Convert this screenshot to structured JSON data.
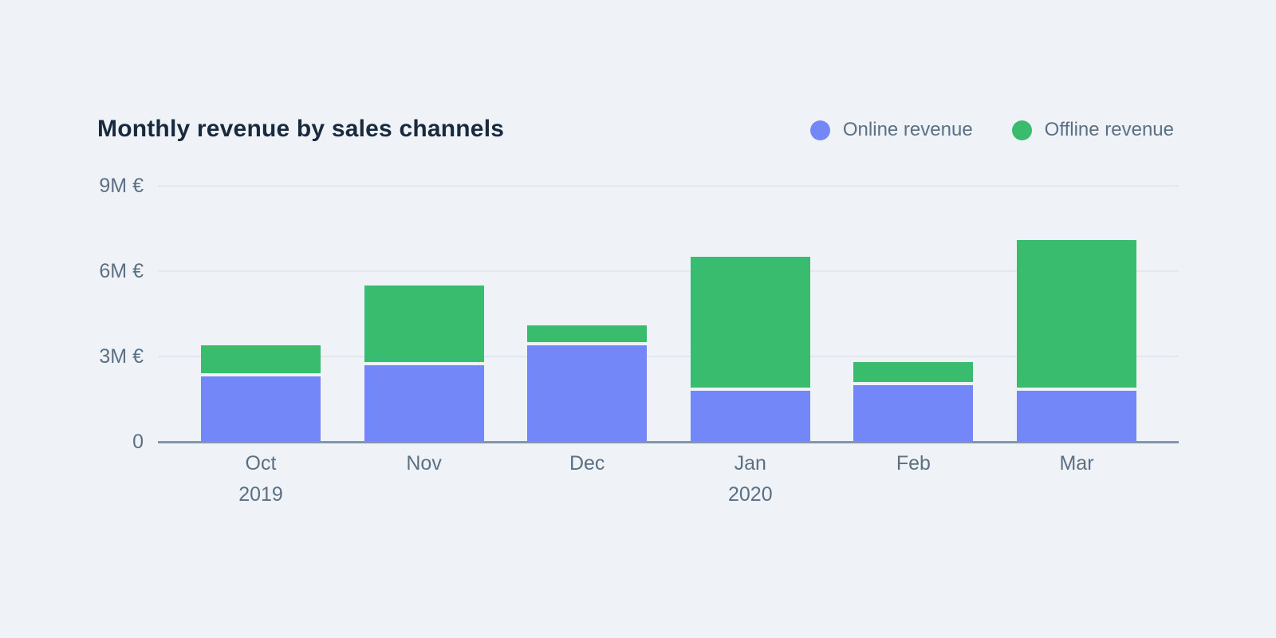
{
  "chart_data": {
    "type": "bar",
    "stacked": true,
    "title": "Monthly revenue by sales channels",
    "categories": [
      "Oct",
      "Nov",
      "Dec",
      "Jan",
      "Feb",
      "Mar"
    ],
    "year_labels": [
      {
        "category_index": 0,
        "label": "2019"
      },
      {
        "category_index": 3,
        "label": "2020"
      }
    ],
    "series": [
      {
        "key": "online",
        "name": "Online revenue",
        "color": "#7487F8",
        "values": [
          2.3,
          2.7,
          3.4,
          1.8,
          2.0,
          1.8
        ]
      },
      {
        "key": "offline",
        "name": "Offline revenue",
        "color": "#39BC6E",
        "values": [
          1.1,
          2.8,
          0.7,
          4.7,
          0.8,
          5.3
        ]
      }
    ],
    "totals": [
      3.4,
      5.5,
      4.1,
      6.5,
      2.8,
      7.1
    ],
    "unit": "M €",
    "ylim": [
      0,
      9
    ],
    "y_ticks": [
      {
        "value": 9,
        "label": "9M €"
      },
      {
        "value": 6,
        "label": "6M €"
      },
      {
        "value": 3,
        "label": "3M €"
      },
      {
        "value": 0,
        "label": "0"
      }
    ],
    "grid": true,
    "legend_position": "top-right"
  },
  "theme": {
    "background": "#EFF3F8",
    "title_color": "#192A3E",
    "axis_text_color": "#5B7084",
    "gridline_color": "#E2E7F0",
    "axis_line_color": "#8195AB",
    "online_color": "#7487F8",
    "offline_color": "#39BC6E"
  }
}
